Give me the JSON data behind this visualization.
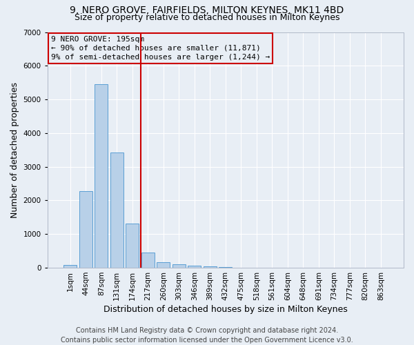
{
  "title_line1": "9, NERO GROVE, FAIRFIELDS, MILTON KEYNES, MK11 4BD",
  "title_line2": "Size of property relative to detached houses in Milton Keynes",
  "xlabel": "Distribution of detached houses by size in Milton Keynes",
  "ylabel": "Number of detached properties",
  "footer_line1": "Contains HM Land Registry data © Crown copyright and database right 2024.",
  "footer_line2": "Contains public sector information licensed under the Open Government Licence v3.0.",
  "annotation_line1": "9 NERO GROVE: 195sqm",
  "annotation_line2": "← 90% of detached houses are smaller (11,871)",
  "annotation_line3": "9% of semi-detached houses are larger (1,244) →",
  "bar_color": "#b8d0e8",
  "bar_edge_color": "#5a9fd4",
  "vline_color": "#cc0000",
  "vline_x": 4.55,
  "annotation_box_edgecolor": "#cc0000",
  "categories": [
    "1sqm",
    "44sqm",
    "87sqm",
    "131sqm",
    "174sqm",
    "217sqm",
    "260sqm",
    "303sqm",
    "346sqm",
    "389sqm",
    "432sqm",
    "475sqm",
    "518sqm",
    "561sqm",
    "604sqm",
    "648sqm",
    "691sqm",
    "734sqm",
    "777sqm",
    "820sqm",
    "863sqm"
  ],
  "values": [
    80,
    2270,
    5460,
    3430,
    1310,
    460,
    165,
    105,
    55,
    35,
    30,
    0,
    0,
    0,
    0,
    0,
    0,
    0,
    0,
    0,
    0
  ],
  "ylim": [
    0,
    7000
  ],
  "yticks": [
    0,
    1000,
    2000,
    3000,
    4000,
    5000,
    6000,
    7000
  ],
  "background_color": "#e8eef5",
  "grid_color": "#ffffff",
  "title1_fontsize": 10,
  "title2_fontsize": 9,
  "axis_label_fontsize": 9,
  "tick_fontsize": 7.5,
  "annotation_fontsize": 8,
  "footer_fontsize": 7
}
